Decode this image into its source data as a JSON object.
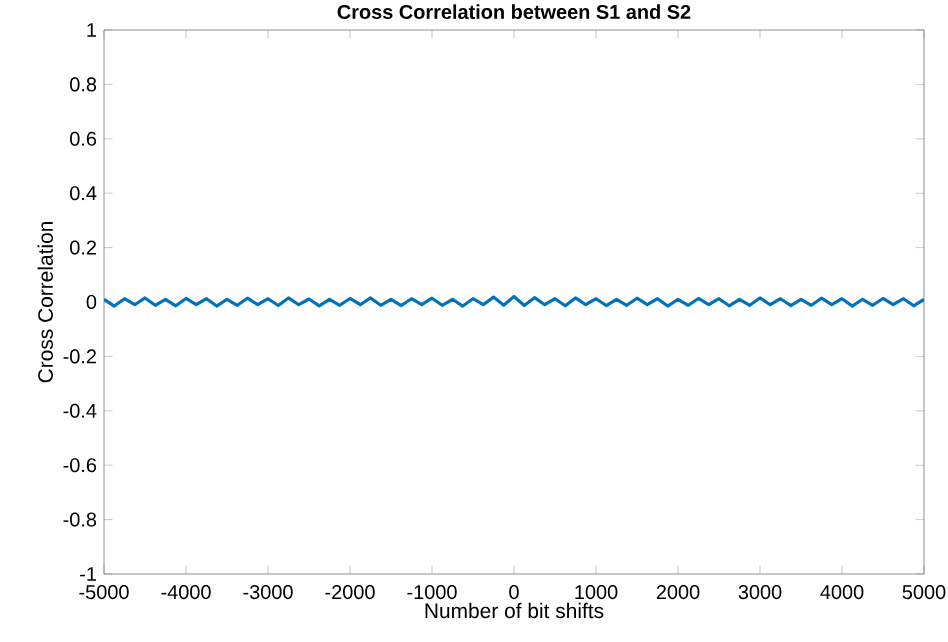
{
  "chart_data": {
    "type": "line",
    "title": "Cross Correlation between S1 and S2",
    "xlabel": "Number of bit shifts",
    "ylabel": "Cross Correlation",
    "x": [
      -5000,
      -4875,
      -4750,
      -4625,
      -4500,
      -4375,
      -4250,
      -4125,
      -4000,
      -3875,
      -3750,
      -3625,
      -3500,
      -3375,
      -3250,
      -3125,
      -3000,
      -2875,
      -2750,
      -2625,
      -2500,
      -2375,
      -2250,
      -2125,
      -2000,
      -1875,
      -1750,
      -1625,
      -1500,
      -1375,
      -1250,
      -1125,
      -1000,
      -875,
      -750,
      -625,
      -500,
      -375,
      -250,
      -125,
      0,
      125,
      250,
      375,
      500,
      625,
      750,
      875,
      1000,
      1125,
      1250,
      1375,
      1500,
      1625,
      1750,
      1875,
      2000,
      2125,
      2250,
      2375,
      2500,
      2625,
      2750,
      2875,
      3000,
      3125,
      3250,
      3375,
      3500,
      3625,
      3750,
      3875,
      4000,
      4125,
      4250,
      4375,
      4500,
      4625,
      4750,
      4875,
      5000
    ],
    "series": [
      {
        "color": "#0072bd",
        "values": [
          0.01,
          -0.015,
          0.012,
          -0.01,
          0.015,
          -0.012,
          0.01,
          -0.014,
          0.013,
          -0.01,
          0.012,
          -0.015,
          0.01,
          -0.012,
          0.014,
          -0.01,
          0.012,
          -0.013,
          0.015,
          -0.01,
          0.011,
          -0.014,
          0.01,
          -0.012,
          0.013,
          -0.01,
          0.015,
          -0.012,
          0.01,
          -0.013,
          0.012,
          -0.01,
          0.014,
          -0.012,
          0.01,
          -0.015,
          0.012,
          -0.01,
          0.018,
          -0.012,
          0.02,
          -0.013,
          0.016,
          -0.01,
          0.012,
          -0.014,
          0.015,
          -0.01,
          0.012,
          -0.013,
          0.01,
          -0.012,
          0.014,
          -0.01,
          0.012,
          -0.015,
          0.01,
          -0.012,
          0.013,
          -0.01,
          0.012,
          -0.014,
          0.01,
          -0.012,
          0.015,
          -0.01,
          0.012,
          -0.013,
          0.01,
          -0.012,
          0.014,
          -0.01,
          0.012,
          -0.015,
          0.01,
          -0.012,
          0.013,
          -0.01,
          0.012,
          -0.014,
          0.01
        ]
      }
    ],
    "xlim": [
      -5000,
      5000
    ],
    "xticks": [
      -5000,
      -4000,
      -3000,
      -2000,
      -1000,
      0,
      1000,
      2000,
      3000,
      4000,
      5000
    ],
    "ylim": [
      -1,
      1
    ],
    "yticks": [
      -1,
      -0.8,
      -0.6,
      -0.4,
      -0.2,
      0,
      0.2,
      0.4,
      0.6,
      0.8,
      1
    ],
    "grid": false,
    "marker": "none",
    "line_style": "solid"
  }
}
